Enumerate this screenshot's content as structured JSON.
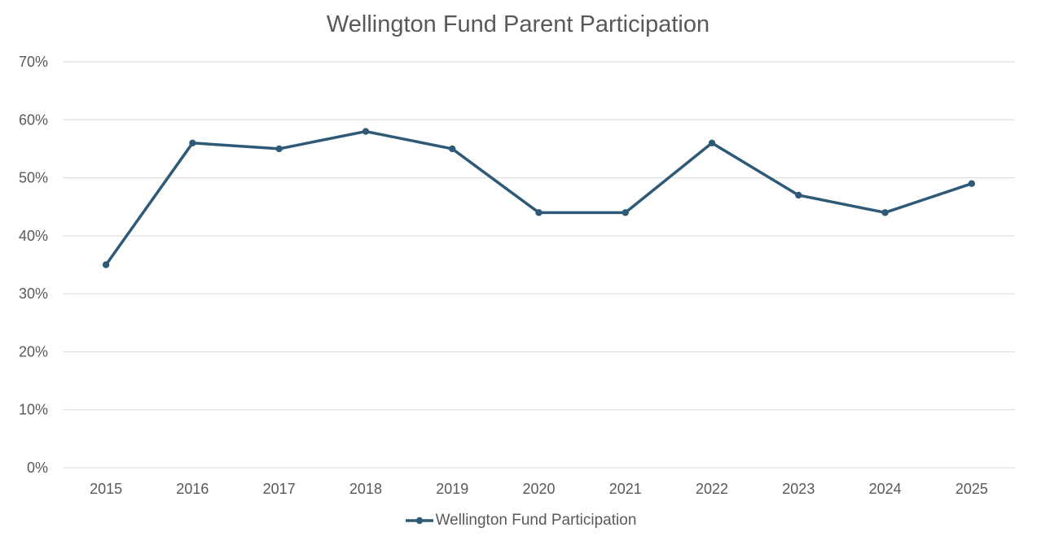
{
  "chart_data": {
    "type": "line",
    "title": "Wellington Fund Parent Participation",
    "xlabel": "",
    "ylabel": "",
    "categories": [
      "2015",
      "2016",
      "2017",
      "2018",
      "2019",
      "2020",
      "2021",
      "2022",
      "2023",
      "2024",
      "2025"
    ],
    "series": [
      {
        "name": "Wellington Fund Participation",
        "values": [
          35,
          56,
          55,
          58,
          55,
          44,
          44,
          56,
          47,
          44,
          49
        ],
        "color": "#2E5A78"
      }
    ],
    "ylim": [
      0,
      70
    ],
    "yticks": [
      0,
      10,
      20,
      30,
      40,
      50,
      60,
      70
    ],
    "ytick_labels": [
      "0%",
      "10%",
      "20%",
      "30%",
      "40%",
      "50%",
      "60%",
      "70%"
    ],
    "grid": true,
    "legend": "bottom-center",
    "colors": {
      "line": "#2E5A78",
      "grid": "#D9D9D9",
      "text": "#595959"
    }
  }
}
